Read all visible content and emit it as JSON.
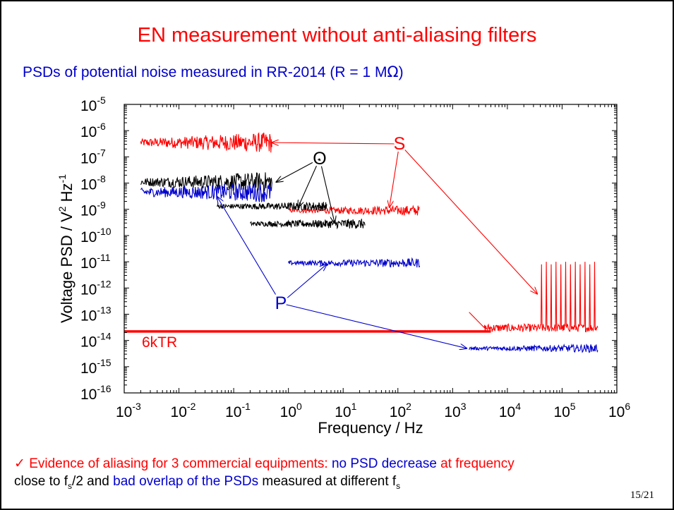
{
  "slide": {
    "title": "EN measurement without anti-aliasing filters",
    "subtitle_main": "PSDs of potential noise measured in RR-2014 (R = 1 M",
    "subtitle_omega": "Ω",
    "subtitle_end": ")",
    "page_number": "15/21"
  },
  "footnote": {
    "check": "✓",
    "line1_a": " Evidence of aliasing for 3 commercial equipments: ",
    "line1_b": "no PSD decrease",
    "line1_c": " at frequency",
    "line2_a": "close to f",
    "line2_sub1": "s",
    "line2_b": "/2 and ",
    "line2_c": "bad overlap of the PSDs",
    "line2_d": " measured at different f",
    "line2_sub2": "s"
  },
  "chart_data": {
    "type": "line",
    "xscale": "log",
    "yscale": "log",
    "xlabel": "Frequency / Hz",
    "ylabel_parts": [
      "Voltage PSD / V",
      "2",
      " Hz",
      "-1"
    ],
    "xlim": [
      0.001,
      1000000
    ],
    "ylim": [
      1e-16,
      1e-05
    ],
    "x_ticks": [
      {
        "base": "10",
        "exp": "-3"
      },
      {
        "base": "10",
        "exp": "-2"
      },
      {
        "base": "10",
        "exp": "-1"
      },
      {
        "base": "10",
        "exp": "0"
      },
      {
        "base": "10",
        "exp": "1"
      },
      {
        "base": "10",
        "exp": "2"
      },
      {
        "base": "10",
        "exp": "3"
      },
      {
        "base": "10",
        "exp": "4"
      },
      {
        "base": "10",
        "exp": "5"
      },
      {
        "base": "10",
        "exp": "6"
      }
    ],
    "y_ticks": [
      {
        "base": "10",
        "exp": "-16"
      },
      {
        "base": "10",
        "exp": "-15"
      },
      {
        "base": "10",
        "exp": "-14"
      },
      {
        "base": "10",
        "exp": "-13"
      },
      {
        "base": "10",
        "exp": "-12"
      },
      {
        "base": "10",
        "exp": "-11"
      },
      {
        "base": "10",
        "exp": "-10"
      },
      {
        "base": "10",
        "exp": "-9"
      },
      {
        "base": "10",
        "exp": "-8"
      },
      {
        "base": "10",
        "exp": "-7"
      },
      {
        "base": "10",
        "exp": "-6"
      },
      {
        "base": "10",
        "exp": "-5"
      }
    ],
    "reference_line": {
      "label": "6kTR",
      "y": 2.2e-14,
      "x_range": [
        0.001,
        5000
      ],
      "color": "#ff0000"
    },
    "series": [
      {
        "color": "#ff0000",
        "x_range": [
          0.002,
          0.5
        ],
        "level": 3.5e-07,
        "spread": 0.15,
        "noise_growth": 0.25
      },
      {
        "color": "#ff0000",
        "x_range": [
          1,
          250
        ],
        "level": 9e-10,
        "spread": 0.08,
        "noise_growth": 0.12
      },
      {
        "color": "#ff0000",
        "x_range": [
          2000,
          450000
        ],
        "level": 3e-14,
        "spread": 0.15,
        "spikes": [
          1e-11,
          8e-12
        ]
      },
      {
        "color": "#000000",
        "x_range": [
          0.002,
          0.5
        ],
        "level": 1.1e-08,
        "spread": 0.15,
        "noise_growth": 0.25
      },
      {
        "color": "#000000",
        "x_range": [
          0.05,
          5
        ],
        "level": 1.3e-09,
        "spread": 0.08,
        "noise_growth": 0.1
      },
      {
        "color": "#000000",
        "x_range": [
          0.2,
          25
        ],
        "level": 2.8e-10,
        "spread": 0.08,
        "noise_growth": 0.12
      },
      {
        "color": "#0000cc",
        "x_range": [
          0.002,
          0.5
        ],
        "level": 4.5e-09,
        "spread": 0.15,
        "noise_growth": 0.25
      },
      {
        "color": "#0000cc",
        "x_range": [
          1,
          250
        ],
        "level": 9e-12,
        "spread": 0.08,
        "noise_growth": 0.1
      },
      {
        "color": "#0000cc",
        "x_range": [
          2000,
          450000
        ],
        "level": 5e-15,
        "spread": 0.06,
        "noise_growth": 0.1
      }
    ],
    "annotations": [
      {
        "label": "S",
        "color": "#ff0000",
        "targets": [
          [
            0.5,
            3.5e-07
          ],
          [
            70,
            1.2e-09
          ],
          [
            35000,
            6e-13
          ]
        ]
      },
      {
        "label": "O",
        "color": "#000000",
        "targets": [
          [
            0.6,
            1.1e-08
          ],
          [
            1.5,
            1.2e-09
          ],
          [
            7,
            3e-10
          ]
        ]
      },
      {
        "label": "P",
        "color": "#0000cc",
        "targets": [
          [
            0.05,
            3e-09
          ],
          [
            5,
            8e-12
          ],
          [
            1800,
            5e-15
          ]
        ]
      }
    ]
  }
}
